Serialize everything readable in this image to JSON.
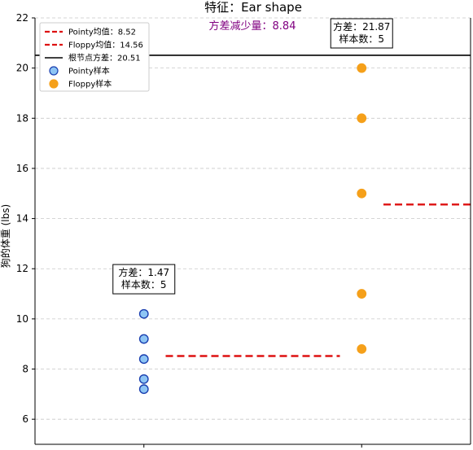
{
  "chart_data": {
    "type": "scatter",
    "title": "特征：Ear shape",
    "subtitle": "方差减少量：8.84",
    "xlabel": "",
    "ylabel": "狗的体重 (lbs)",
    "ylim": [
      5,
      22
    ],
    "yticks": [
      "6",
      "8",
      "10",
      "12",
      "14",
      "16",
      "18",
      "20",
      "22"
    ],
    "grid": true,
    "legend": {
      "placement": "top-left",
      "entries": [
        {
          "label": "Pointy均值：8.52",
          "kind": "dashed-line",
          "color": "#dd1111"
        },
        {
          "label": "Floppy均值：14.56",
          "kind": "dashed-line",
          "color": "#dd1111"
        },
        {
          "label": "根节点方差：20.51",
          "kind": "solid-line",
          "color": "#000000"
        },
        {
          "label": "Pointy样本",
          "kind": "marker",
          "color": "#8ec5f4",
          "edge": "#1a3fb0"
        },
        {
          "label": "Floppy样本",
          "kind": "marker",
          "color": "#f5a01a",
          "edge": "#f5a01a"
        }
      ]
    },
    "series": [
      {
        "name": "Pointy样本",
        "x": 0,
        "values": [
          10.2,
          9.2,
          8.4,
          7.6,
          7.2
        ],
        "color": "#8ec5f4",
        "edge": "#1a3fb0"
      },
      {
        "name": "Floppy样本",
        "x": 1,
        "values": [
          20.0,
          18.0,
          15.0,
          11.0,
          8.8
        ],
        "color": "#f5a01a",
        "edge": "#f5a01a"
      }
    ],
    "mean_lines": [
      {
        "name": "Pointy均值",
        "value": 8.52,
        "x_range": [
          0.1,
          0.9
        ],
        "color": "#dd1111"
      },
      {
        "name": "Floppy均值",
        "value": 14.56,
        "x_range": [
          1.1,
          1.6
        ],
        "color": "#dd1111"
      }
    ],
    "root_line": {
      "name": "根节点方差",
      "value": 20.51,
      "color": "#000000"
    },
    "annotations": [
      {
        "x": 0,
        "y": 11.0,
        "lines": [
          "方差：1.47",
          "样本数：5"
        ]
      },
      {
        "x": 1,
        "y": 20.8,
        "lines": [
          "方差：21.87",
          "样本数：5"
        ]
      }
    ]
  }
}
